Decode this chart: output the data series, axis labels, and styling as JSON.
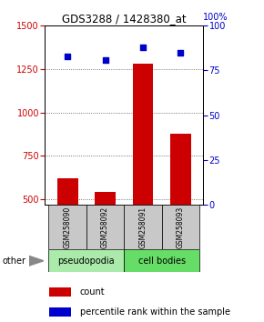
{
  "title": "GDS3288 / 1428380_at",
  "samples": [
    "GSM258090",
    "GSM258092",
    "GSM258091",
    "GSM258093"
  ],
  "bar_values": [
    620,
    540,
    1280,
    880
  ],
  "scatter_values": [
    83,
    81,
    88,
    85
  ],
  "ylim_left": [
    470,
    1500
  ],
  "ylim_right": [
    0,
    100
  ],
  "yticks_left": [
    500,
    750,
    1000,
    1250,
    1500
  ],
  "yticks_right": [
    0,
    25,
    50,
    75,
    100
  ],
  "bar_color": "#cc0000",
  "scatter_color": "#0000cc",
  "groups": [
    {
      "label": "pseudopodia",
      "color": "#aaeaaa",
      "col_indices": [
        0,
        1
      ]
    },
    {
      "label": "cell bodies",
      "color": "#66dd66",
      "col_indices": [
        2,
        3
      ]
    }
  ],
  "group_box_color": "#c8c8c8",
  "legend_count_color": "#cc0000",
  "legend_percentile_color": "#0000cc",
  "other_label": "other",
  "grid_color": "#505050",
  "bar_width": 0.55,
  "bar_bottom": 470
}
